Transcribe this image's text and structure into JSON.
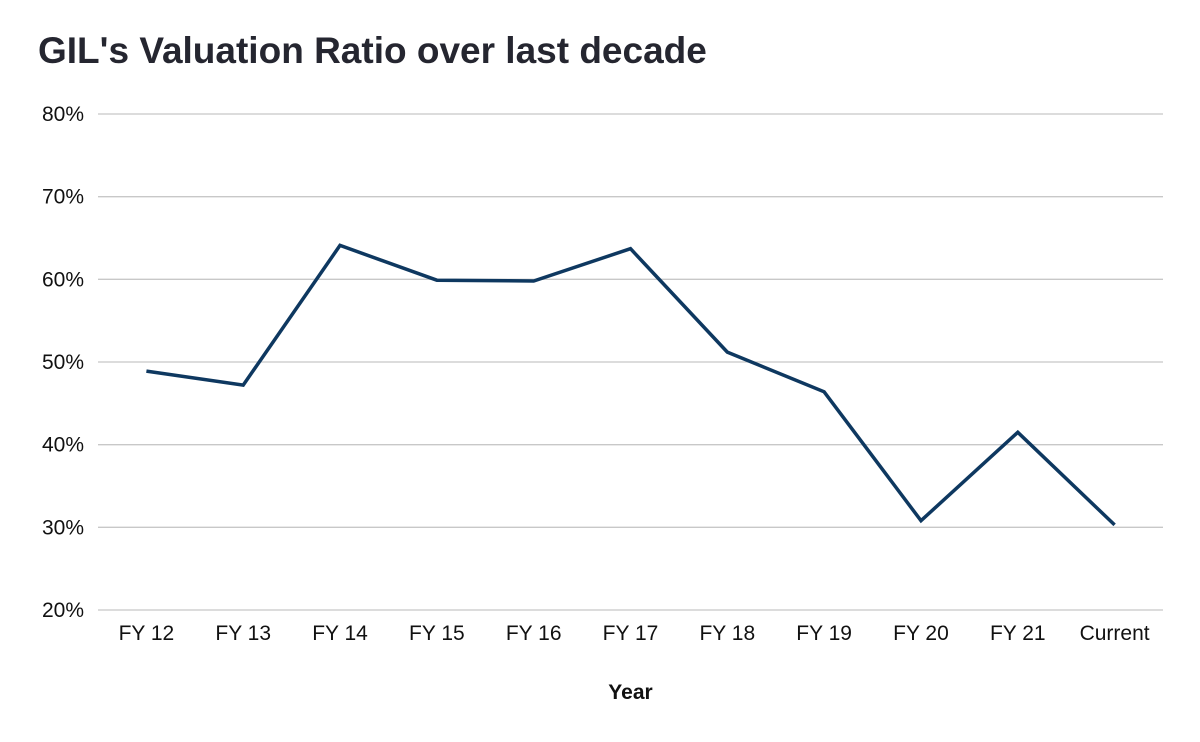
{
  "chart_data": {
    "type": "line",
    "title": "GIL's Valuation Ratio over last decade",
    "xlabel": "Year",
    "ylabel": "",
    "categories": [
      "FY 12",
      "FY 13",
      "FY 14",
      "FY 15",
      "FY 16",
      "FY 17",
      "FY 18",
      "FY 19",
      "FY 20",
      "FY 21",
      "Current"
    ],
    "series": [
      {
        "values": [
          48.9,
          47.2,
          64.1,
          59.9,
          59.8,
          63.7,
          51.2,
          46.4,
          30.8,
          41.5,
          30.3
        ],
        "color": "#0e3860"
      }
    ],
    "ylim": [
      20,
      80
    ],
    "yticks": [
      20,
      30,
      40,
      50,
      60,
      70,
      80
    ],
    "ytick_labels": [
      "20%",
      "30%",
      "40%",
      "50%",
      "60%",
      "70%",
      "80%"
    ],
    "grid": true,
    "legend": "none",
    "colors": {
      "title": "#252630",
      "grid": "#c8c8c8",
      "text": "#111111"
    }
  }
}
